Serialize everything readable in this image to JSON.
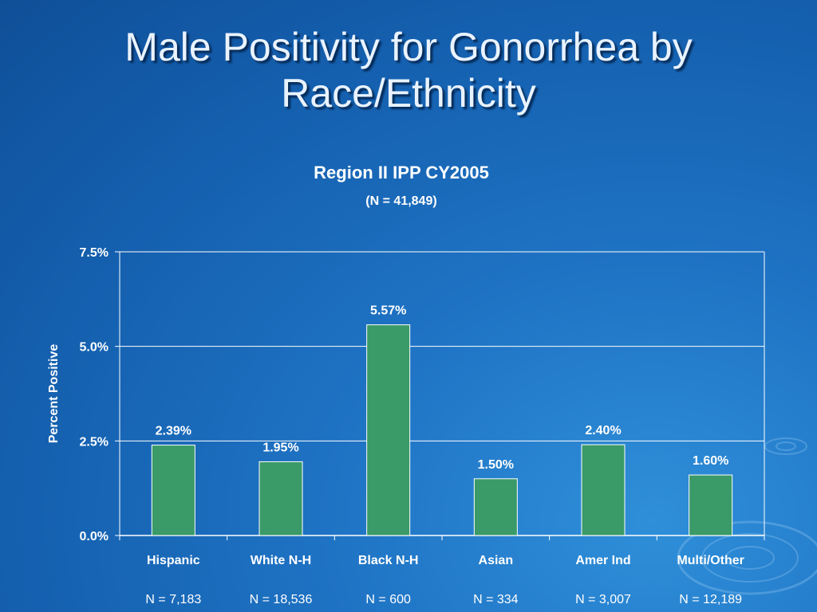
{
  "slide": {
    "title_line1": "Male Positivity for Gonorrhea by",
    "title_line2": "Race/Ethnicity"
  },
  "colors": {
    "bar": "#3a9a68",
    "bar_border": "#ffffff",
    "grid": "#ffffff",
    "text": "#ffffff"
  },
  "chart_data": {
    "type": "bar",
    "title": "Region II IPP CY2005",
    "subtitle": "(N = 41,849)",
    "ylabel": "Percent Positive",
    "xlabel": "",
    "categories": [
      "Hispanic",
      "White N-H",
      "Black N-H",
      "Asian",
      "Amer Ind",
      "Multi/Other"
    ],
    "values": [
      2.39,
      1.95,
      5.57,
      1.5,
      2.4,
      1.6
    ],
    "value_labels": [
      "2.39%",
      "1.95%",
      "5.57%",
      "1.50%",
      "2.40%",
      "1.60%"
    ],
    "sample_sizes": [
      "N = 7,183",
      "N = 18,536",
      "N = 600",
      "N = 334",
      "N = 3,007",
      "N = 12,189"
    ],
    "ylim": [
      0,
      7.5
    ],
    "yticks": [
      0,
      2.5,
      5.0,
      7.5
    ],
    "ytick_labels": [
      "0.0%",
      "2.5%",
      "5.0%",
      "7.5%"
    ],
    "grid": true,
    "legend": "none"
  }
}
